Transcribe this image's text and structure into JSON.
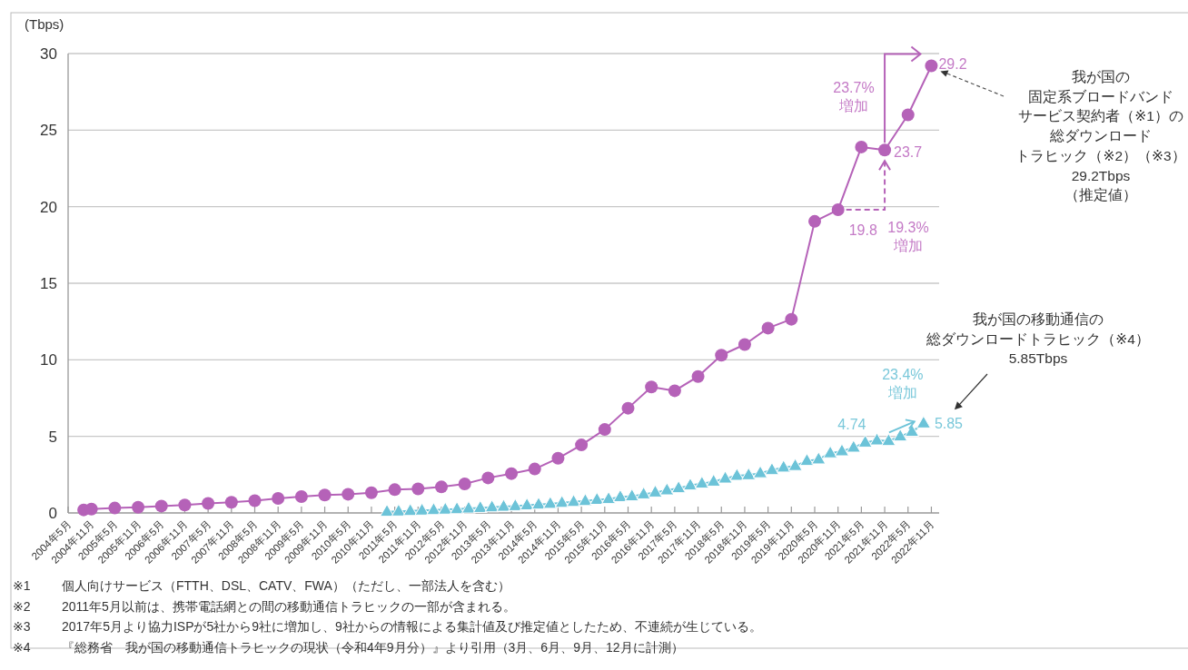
{
  "chart_data": {
    "type": "line",
    "ylabel": "(Tbps)",
    "grid": "y",
    "xlim": [
      "2004-05",
      "2023-01"
    ],
    "ylim": [
      0,
      30
    ],
    "yticks": [
      0,
      5,
      10,
      15,
      20,
      25,
      30
    ],
    "xticks": [
      {
        "value": "2004-05",
        "label": "2004年5月"
      },
      {
        "value": "2004-11",
        "label": "2004年11月"
      },
      {
        "value": "2005-05",
        "label": "2005年5月"
      },
      {
        "value": "2005-11",
        "label": "2005年11月"
      },
      {
        "value": "2006-05",
        "label": "2006年5月"
      },
      {
        "value": "2006-11",
        "label": "2006年11月"
      },
      {
        "value": "2007-05",
        "label": "2007年5月"
      },
      {
        "value": "2007-11",
        "label": "2007年11月"
      },
      {
        "value": "2008-05",
        "label": "2008年5月"
      },
      {
        "value": "2008-11",
        "label": "2008年11月"
      },
      {
        "value": "2009-05",
        "label": "2009年5月"
      },
      {
        "value": "2009-11",
        "label": "2009年11月"
      },
      {
        "value": "2010-05",
        "label": "2010年5月"
      },
      {
        "value": "2010-11",
        "label": "2010年11月"
      },
      {
        "value": "2011-05",
        "label": "2011年5月"
      },
      {
        "value": "2011-11",
        "label": "2011年11月"
      },
      {
        "value": "2012-05",
        "label": "2012年5月"
      },
      {
        "value": "2012-11",
        "label": "2012年11月"
      },
      {
        "value": "2013-05",
        "label": "2013年5月"
      },
      {
        "value": "2013-11",
        "label": "2013年11月"
      },
      {
        "value": "2014-05",
        "label": "2014年5月"
      },
      {
        "value": "2014-11",
        "label": "2014年11月"
      },
      {
        "value": "2015-05",
        "label": "2015年5月"
      },
      {
        "value": "2015-11",
        "label": "2015年11月"
      },
      {
        "value": "2016-05",
        "label": "2016年5月"
      },
      {
        "value": "2016-11",
        "label": "2016年11月"
      },
      {
        "value": "2017-05",
        "label": "2017年5月"
      },
      {
        "value": "2017-11",
        "label": "2017年11月"
      },
      {
        "value": "2018-05",
        "label": "2018年5月"
      },
      {
        "value": "2018-11",
        "label": "2018年11月"
      },
      {
        "value": "2019-05",
        "label": "2019年5月"
      },
      {
        "value": "2019-11",
        "label": "2019年11月"
      },
      {
        "value": "2020-05",
        "label": "2020年5月"
      },
      {
        "value": "2020-11",
        "label": "2020年11月"
      },
      {
        "value": "2021-05",
        "label": "2021年5月"
      },
      {
        "value": "2021-11",
        "label": "2021年11月"
      },
      {
        "value": "2022-05",
        "label": "2022年5月"
      },
      {
        "value": "2022-11",
        "label": "2022年11月"
      }
    ],
    "series": [
      {
        "name": "我が国の固定系ブロードバンドサービス契約者（※1）の総ダウンロードトラヒック（※2）（※3）29.2Tbps（推定値）",
        "color": "#b562b8",
        "marker": "circle",
        "x": [
          "2004-09",
          "2004-11",
          "2005-05",
          "2005-11",
          "2006-05",
          "2006-11",
          "2007-05",
          "2007-11",
          "2008-05",
          "2008-11",
          "2009-05",
          "2009-11",
          "2010-05",
          "2010-11",
          "2011-05",
          "2011-11",
          "2012-05",
          "2012-11",
          "2013-05",
          "2013-11",
          "2014-05",
          "2014-11",
          "2015-05",
          "2015-11",
          "2016-05",
          "2016-11",
          "2017-05",
          "2017-11",
          "2018-05",
          "2018-11",
          "2019-05",
          "2019-11",
          "2020-05",
          "2020-11",
          "2021-05",
          "2021-11",
          "2022-05",
          "2022-11"
        ],
        "values": [
          0.2,
          0.25,
          0.32,
          0.37,
          0.45,
          0.52,
          0.62,
          0.7,
          0.8,
          0.95,
          1.07,
          1.17,
          1.22,
          1.32,
          1.52,
          1.57,
          1.7,
          1.9,
          2.29,
          2.57,
          2.87,
          3.57,
          4.44,
          5.45,
          6.84,
          8.23,
          7.98,
          8.91,
          10.3,
          11.0,
          12.07,
          12.65,
          19.04,
          19.8,
          23.9,
          23.7,
          26.0,
          29.2
        ]
      },
      {
        "name": "我が国の移動通信の総ダウンロードトラヒック（※4）5.85Tbps",
        "color": "#6cc3d8",
        "marker": "triangle",
        "x": [
          "2011-03",
          "2011-06",
          "2011-09",
          "2011-12",
          "2012-03",
          "2012-06",
          "2012-09",
          "2012-12",
          "2013-03",
          "2013-06",
          "2013-09",
          "2013-12",
          "2014-03",
          "2014-06",
          "2014-09",
          "2014-12",
          "2015-03",
          "2015-06",
          "2015-09",
          "2015-12",
          "2016-03",
          "2016-06",
          "2016-09",
          "2016-12",
          "2017-03",
          "2017-06",
          "2017-09",
          "2017-12",
          "2018-03",
          "2018-06",
          "2018-09",
          "2018-12",
          "2019-03",
          "2019-06",
          "2019-09",
          "2019-12",
          "2020-03",
          "2020-06",
          "2020-09",
          "2020-12",
          "2021-03",
          "2021-06",
          "2021-09",
          "2021-12",
          "2022-03",
          "2022-06",
          "2022-09"
        ],
        "values": [
          0.08,
          0.1,
          0.13,
          0.16,
          0.19,
          0.22,
          0.25,
          0.29,
          0.33,
          0.37,
          0.41,
          0.45,
          0.5,
          0.55,
          0.6,
          0.66,
          0.72,
          0.78,
          0.86,
          0.91,
          1.04,
          1.09,
          1.22,
          1.34,
          1.48,
          1.62,
          1.8,
          1.92,
          2.05,
          2.25,
          2.43,
          2.47,
          2.6,
          2.8,
          2.97,
          3.07,
          3.4,
          3.5,
          3.9,
          4.03,
          4.27,
          4.6,
          4.74,
          4.7,
          5.0,
          5.3,
          5.85
        ]
      }
    ],
    "annotations": [
      {
        "text": "29.2",
        "x": "2022-11",
        "y": 29.2
      },
      {
        "text": "23.7",
        "x": "2021-11",
        "y": 23.7
      },
      {
        "text": "19.8",
        "x": "2020-11",
        "y": 19.8
      },
      "23.7%\n増加",
      "19.3%\n増加",
      {
        "text": "4.74",
        "x": "2021-09",
        "y": 4.74
      },
      {
        "text": "5.85",
        "x": "2022-09",
        "y": 5.85
      },
      {
        "text": "23.4%\n増加",
        "x": "2022-09",
        "y": 5.85
      },
      "※1 個人向けサービス（FTTH、DSL、CATV、FWA）（ただし、一部法人を含む）",
      "※2 2011年5月以前は、携帯電話網との間の移動通信トラヒックの一部が含まれる。",
      "※3 2017年5月より協力ISPが5社から9社に増加し、9社からの情報による集計値及び推定値としたため、不連続が生じている。",
      "※4 『総務省　我が国の移動通信トラヒックの現状（令和4年9月分）』より引用（3月、6月、9月、12月に計測）"
    ]
  }
}
